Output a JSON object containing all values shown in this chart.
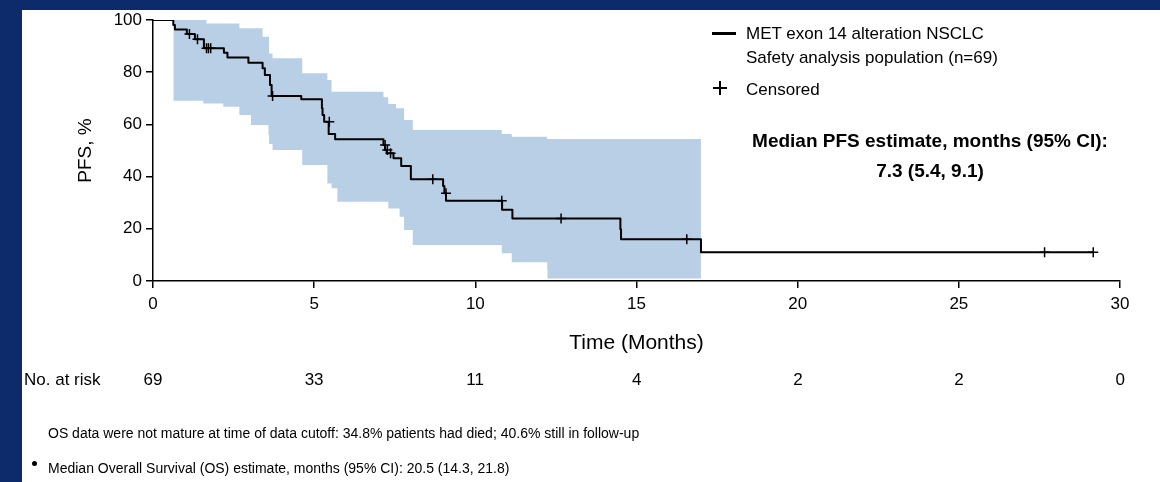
{
  "chart_data": {
    "type": "step",
    "xlabel": "Time (Months)",
    "ylabel": "PFS, %",
    "xlim": [
      0,
      30
    ],
    "xticks": [
      0,
      5,
      10,
      15,
      20,
      25,
      30
    ],
    "ylim": [
      0,
      100
    ],
    "yticks": [
      0,
      20,
      40,
      60,
      80,
      100
    ],
    "grid": false,
    "legend": "top right",
    "series": [
      {
        "name": "MET exon 14 alteration NSCLC Safety analysis population (n=69)",
        "color": "#000000",
        "marker": "none",
        "x": [
          0,
          0.63,
          0.68,
          1.05,
          1.3,
          1.56,
          1.58,
          1.66,
          2.18,
          2.2,
          2.31,
          2.68,
          2.96,
          3.04,
          3.4,
          3.47,
          3.58,
          3.6,
          3.63,
          3.68,
          3.71,
          4.6,
          4.63,
          5.24,
          5.26,
          5.31,
          5.41,
          5.45,
          5.54,
          5.65,
          5.72,
          7.15,
          7.2,
          7.25,
          7.3,
          7.46,
          7.54,
          7.65,
          7.7,
          7.79,
          8.0,
          8.06,
          9.0,
          9.04,
          9.09,
          10.82,
          10.83,
          11.13,
          11.15,
          12.23,
          12.24,
          14.5,
          14.52,
          14.95,
          17.0,
          17.07,
          29.17
        ],
        "values": [
          100,
          100,
          98.1,
          96.4,
          94.6,
          92.6,
          92.6,
          89.2,
          89.2,
          89.2,
          87.5,
          85.6,
          85.6,
          83.6,
          83.6,
          81.5,
          78.9,
          78.9,
          78.9,
          75.1,
          70.9,
          70.9,
          69.6,
          69.6,
          66.2,
          63.6,
          61.0,
          61.0,
          56.3,
          56.3,
          54.3,
          54.3,
          52.1,
          50.2,
          48.9,
          48.9,
          47.0,
          47.0,
          47.0,
          44.1,
          44.1,
          39.0,
          39.0,
          36.4,
          33.6,
          30.7,
          30.7,
          27.3,
          27.3,
          23.9,
          23.9,
          23.9,
          19.8,
          16.0,
          16.0,
          11.0,
          11.0
        ],
        "upper": [
          null,
          100,
          100,
          100,
          100,
          100,
          100,
          100,
          98.7,
          98.7,
          98.7,
          98.7,
          96.8,
          96.8,
          96.8,
          93.6,
          93.6,
          93.6,
          87.2,
          87.2,
          87.2,
          85.3,
          85.3,
          79.6,
          79.6,
          79.6,
          79.6,
          77,
          77,
          72.5,
          72.5,
          72.5,
          70.4,
          70.4,
          70.4,
          67.8,
          67.8,
          66.2,
          66.2,
          66.2,
          61.7,
          61.7,
          57.9,
          57.9,
          57.9,
          57.9,
          56.3,
          56.3,
          55.3,
          55.3,
          54.4,
          54.4,
          54.4,
          54.4,
          54.4,
          null,
          null
        ],
        "lower": [
          null,
          69.1,
          69.1,
          69.1,
          69.1,
          69.1,
          68.0,
          68.0,
          68.0,
          66.8,
          66.8,
          66.8,
          63.6,
          63.6,
          59.8,
          59.8,
          59.8,
          56.0,
          52.5,
          52.5,
          52.5,
          50.2,
          50.2,
          44.4,
          44.4,
          44.4,
          44.4,
          37.4,
          37.4,
          35.5,
          35.5,
          30.4,
          30.4,
          30.4,
          30.4,
          27.8,
          27.8,
          27.8,
          24.6,
          24.6,
          19.5,
          19.5,
          13.8,
          13.8,
          13.8,
          13.8,
          10.6,
          10.6,
          7.2,
          7.2,
          4.5,
          1.0,
          1.0,
          1.0,
          1.0,
          null,
          null
        ]
      },
      {
        "name": "Censored",
        "type": "scatter",
        "color": "#000000",
        "marker": "cross",
        "x": [
          1.13,
          1.38,
          1.66,
          1.72,
          1.79,
          3.71,
          5.47,
          7.2,
          7.27,
          7.37,
          8.68,
          9.09,
          10.82,
          12.66,
          16.56,
          27.66,
          29.17
        ],
        "values": [
          94.6,
          92.6,
          89.2,
          89.2,
          89.2,
          70.9,
          61.0,
          52.1,
          50.2,
          48.9,
          39.0,
          33.6,
          30.7,
          23.9,
          16.0,
          11.0,
          11.0
        ]
      }
    ],
    "annotations": [
      "Median PFS estimate, months (95% CI):",
      "7.3 (5.4, 9.1)",
      "No. at risk",
      "69",
      "33",
      "11",
      "4",
      "2",
      "2",
      "0",
      "OS data were not mature at time of data cutoff: 34.8% patients had died; 40.6% still in follow-up",
      "Median Overall Survival (OS) estimate, months (95% CI): 20.5 (14.3, 21.8)"
    ]
  }
}
